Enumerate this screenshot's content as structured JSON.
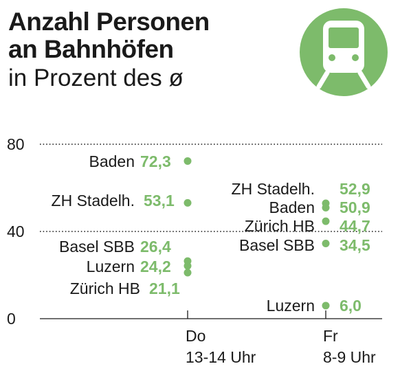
{
  "title_line1": "Anzahl Personen",
  "title_line2": "an Bahnhöfen",
  "subtitle": "in Prozent des ø",
  "icon": "train-icon",
  "colors": {
    "accent": "#7dbb6b",
    "text": "#1a1a1a"
  },
  "chart_data": {
    "type": "scatter",
    "ylim": [
      0,
      80
    ],
    "yticks": [
      0,
      40,
      80
    ],
    "ytick_labels": [
      "0",
      "40",
      "80"
    ],
    "categories": [
      {
        "line1": "Do",
        "line2": "13-14 Uhr"
      },
      {
        "line1": "Fr",
        "line2": "8-9 Uhr"
      }
    ],
    "groups": [
      {
        "points": [
          {
            "name": "Baden",
            "value": 72.3,
            "value_label": "72,3"
          },
          {
            "name": "ZH Stadelh.",
            "value": 53.1,
            "value_label": "53,1"
          },
          {
            "name": "Basel SBB",
            "value": 26.4,
            "value_label": "26,4"
          },
          {
            "name": "Luzern",
            "value": 24.2,
            "value_label": "24,2"
          },
          {
            "name": "Zürich HB",
            "value": 21.1,
            "value_label": "21,1"
          }
        ]
      },
      {
        "points": [
          {
            "name": "ZH Stadelh.",
            "value": 52.9,
            "value_label": "52,9"
          },
          {
            "name": "Baden",
            "value": 50.9,
            "value_label": "50,9"
          },
          {
            "name": "Zürich HB",
            "value": 44.7,
            "value_label": "44,7"
          },
          {
            "name": "Basel SBB",
            "value": 34.5,
            "value_label": "34,5"
          },
          {
            "name": "Luzern",
            "value": 6.0,
            "value_label": "6,0"
          }
        ]
      }
    ]
  }
}
